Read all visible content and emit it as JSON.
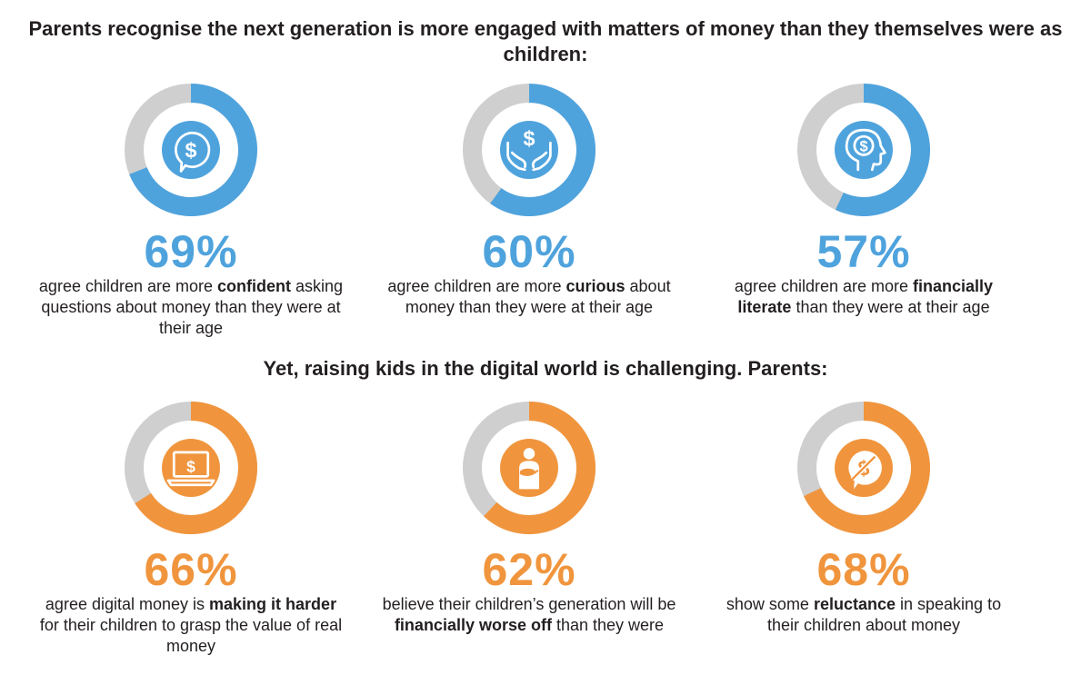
{
  "headings": {
    "top": "Parents recognise the next generation is more engaged with matters of money than they themselves were as children:",
    "bottom": "Yet, raising kids in the digital world is challenging. Parents:"
  },
  "colors": {
    "blue": "#4fa3dd",
    "orange": "#f0953d",
    "grey": "#cfcfcf",
    "text": "#231f20"
  },
  "chart_data": [
    {
      "type": "pie",
      "group": "top",
      "stats": [
        {
          "value": 69,
          "label": "69%",
          "icon": "dollar-speech-bubble-icon",
          "desc": [
            {
              "t": "agree children are more "
            },
            {
              "t": "confident",
              "b": true
            },
            {
              "t": " asking questions about money than they were at their age"
            }
          ]
        },
        {
          "value": 60,
          "label": "60%",
          "icon": "hands-holding-dollar-icon",
          "desc": [
            {
              "t": "agree children are more "
            },
            {
              "t": "curious",
              "b": true
            },
            {
              "t": " about money than they were at their age"
            }
          ]
        },
        {
          "value": 57,
          "label": "57%",
          "icon": "head-with-dollar-icon",
          "desc": [
            {
              "t": "agree children are more "
            },
            {
              "t": "financially literate",
              "b": true
            },
            {
              "t": " than they were at their age"
            }
          ]
        }
      ]
    },
    {
      "type": "pie",
      "group": "bottom",
      "stats": [
        {
          "value": 66,
          "label": "66%",
          "icon": "laptop-dollar-icon",
          "desc": [
            {
              "t": "agree digital money is "
            },
            {
              "t": "making it harder",
              "b": true
            },
            {
              "t": " for their children to grasp the value of real money"
            }
          ]
        },
        {
          "value": 62,
          "label": "62%",
          "icon": "person-holding-baby-icon",
          "desc": [
            {
              "t": "believe their children’s generation will be "
            },
            {
              "t": "financially worse off",
              "b": true
            },
            {
              "t": " than they were"
            }
          ]
        },
        {
          "value": 68,
          "label": "68%",
          "icon": "crossed-dollar-bubble-icon",
          "desc": [
            {
              "t": "show some "
            },
            {
              "t": "reluctance",
              "b": true
            },
            {
              "t": " in speaking to their children about money"
            }
          ]
        }
      ]
    }
  ]
}
